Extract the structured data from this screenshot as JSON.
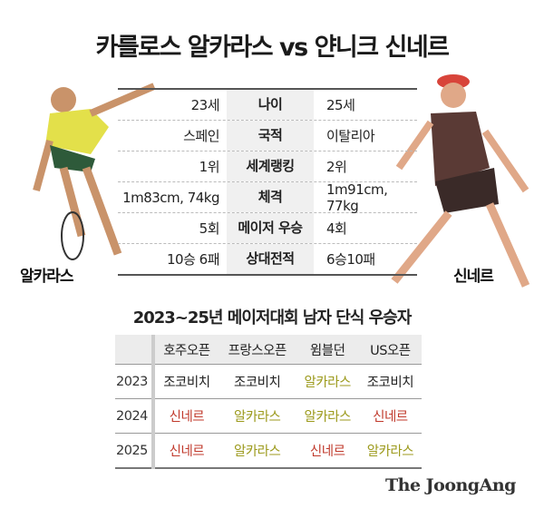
{
  "title": "카를로스 알카라스 vs 얀니크 신네르",
  "players": {
    "left": "알카라스",
    "right": "신네르"
  },
  "comparison": [
    {
      "label": "나이",
      "left": "23세",
      "right": "25세"
    },
    {
      "label": "국적",
      "left": "스페인",
      "right": "이탈리아"
    },
    {
      "label": "세계랭킹",
      "left": "1위",
      "right": "2위"
    },
    {
      "label": "체격",
      "left": "1m83cm, 74kg",
      "right": "1m91cm, 77kg"
    },
    {
      "label": "메이저 우승",
      "left": "5회",
      "right": "4회"
    },
    {
      "label": "상대전적",
      "left": "10승 6패",
      "right": "6승10패"
    }
  ],
  "winners": {
    "title": "2023~25년 메이저대회 남자 단식 우승자",
    "columns": [
      "호주오픈",
      "프랑스오픈",
      "윔블던",
      "US오픈"
    ],
    "rows": [
      {
        "year": "2023",
        "cells": [
          "조코비치",
          "조코비치",
          "알카라스",
          "조코비치"
        ]
      },
      {
        "year": "2024",
        "cells": [
          "신네르",
          "알카라스",
          "알카라스",
          "신네르"
        ]
      },
      {
        "year": "2025",
        "cells": [
          "신네르",
          "알카라스",
          "신네르",
          "알카라스"
        ]
      }
    ]
  },
  "colors": {
    "sinner": "#c0392b",
    "alcaraz": "#9c9a1c",
    "default": "#222222"
  },
  "logo": "The JoongAng"
}
